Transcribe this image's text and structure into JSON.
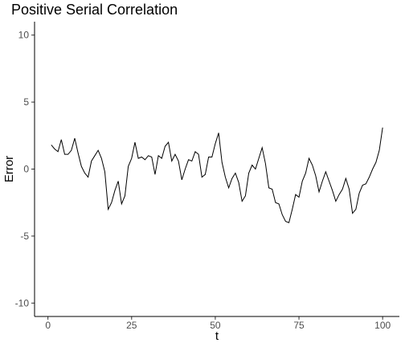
{
  "chart_data": {
    "type": "line",
    "title": "Positive Serial Correlation",
    "xlabel": "t",
    "ylabel": "Error",
    "xlim": [
      -4,
      105
    ],
    "ylim": [
      -11,
      11
    ],
    "xticks": [
      0,
      25,
      50,
      75,
      100
    ],
    "xtick_labels": [
      "0",
      "25",
      "50",
      "75",
      "100"
    ],
    "yticks": [
      10,
      5,
      0,
      -5,
      -10
    ],
    "ytick_labels": [
      "10",
      "5",
      "0",
      "-5",
      "-10"
    ],
    "grid": false,
    "legend": "none",
    "line_color": "#000000",
    "x": [
      1,
      2,
      3,
      4,
      5,
      6,
      7,
      8,
      9,
      10,
      11,
      12,
      13,
      14,
      15,
      16,
      17,
      18,
      19,
      20,
      21,
      22,
      23,
      24,
      25,
      26,
      27,
      28,
      29,
      30,
      31,
      32,
      33,
      34,
      35,
      36,
      37,
      38,
      39,
      40,
      41,
      42,
      43,
      44,
      45,
      46,
      47,
      48,
      49,
      50,
      51,
      52,
      53,
      54,
      55,
      56,
      57,
      58,
      59,
      60,
      61,
      62,
      63,
      64,
      65,
      66,
      67,
      68,
      69,
      70,
      71,
      72,
      73,
      74,
      75,
      76,
      77,
      78,
      79,
      80,
      81,
      82,
      83,
      84,
      85,
      86,
      87,
      88,
      89,
      90,
      91,
      92,
      93,
      94,
      95,
      96,
      97,
      98,
      99,
      100
    ],
    "y": [
      1.8,
      1.5,
      1.3,
      2.2,
      1.1,
      1.1,
      1.4,
      2.3,
      1.2,
      0.2,
      -0.3,
      -0.6,
      0.6,
      1.0,
      1.4,
      0.8,
      -0.2,
      -3.0,
      -2.5,
      -1.6,
      -0.9,
      -2.6,
      -2.0,
      0.2,
      0.8,
      2.0,
      0.8,
      0.9,
      0.7,
      1.0,
      0.9,
      -0.4,
      1.0,
      0.8,
      1.7,
      2.0,
      0.6,
      1.1,
      0.6,
      -0.8,
      0.0,
      0.7,
      0.6,
      1.3,
      1.1,
      -0.6,
      -0.4,
      0.9,
      0.9,
      1.9,
      2.7,
      0.5,
      -0.6,
      -1.4,
      -0.7,
      -0.3,
      -1.0,
      -2.4,
      -2.0,
      -0.3,
      0.3,
      0.0,
      0.8,
      1.6,
      0.4,
      -1.4,
      -1.5,
      -2.5,
      -2.6,
      -3.4,
      -3.9,
      -4.0,
      -3.0,
      -1.9,
      -2.1,
      -0.9,
      -0.3,
      0.8,
      0.3,
      -0.5,
      -1.7,
      -0.9,
      -0.2,
      -0.9,
      -1.6,
      -2.4,
      -1.9,
      -1.5,
      -0.7,
      -1.5,
      -3.3,
      -3.0,
      -1.8,
      -1.2,
      -1.1,
      -0.6,
      0.0,
      0.5,
      1.4,
      3.1
    ]
  }
}
